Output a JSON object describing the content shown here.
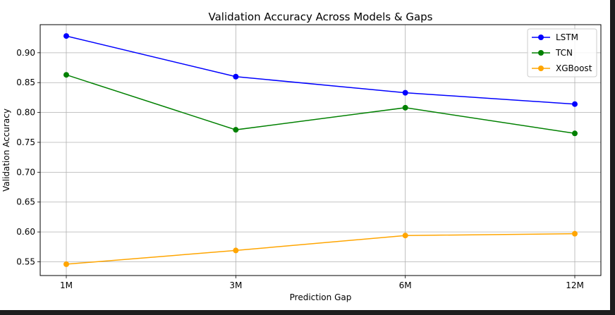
{
  "chart_data": {
    "type": "line",
    "title": "Validation Accuracy Across Models & Gaps",
    "xlabel": "Prediction Gap",
    "ylabel": "Validation Accuracy",
    "categories": [
      "1M",
      "3M",
      "6M",
      "12M"
    ],
    "yticks": [
      "0.55",
      "0.60",
      "0.65",
      "0.70",
      "0.75",
      "0.80",
      "0.85",
      "0.90"
    ],
    "ylim": [
      0.527,
      0.947
    ],
    "grid": true,
    "legend_position": "top-right",
    "series": [
      {
        "name": "LSTM",
        "color": "#0000ff",
        "values": [
          0.928,
          0.86,
          0.833,
          0.814
        ]
      },
      {
        "name": "TCN",
        "color": "#008000",
        "values": [
          0.863,
          0.771,
          0.808,
          0.765
        ]
      },
      {
        "name": "XGBoost",
        "color": "#ffa500",
        "values": [
          0.546,
          0.569,
          0.594,
          0.597
        ]
      }
    ]
  }
}
